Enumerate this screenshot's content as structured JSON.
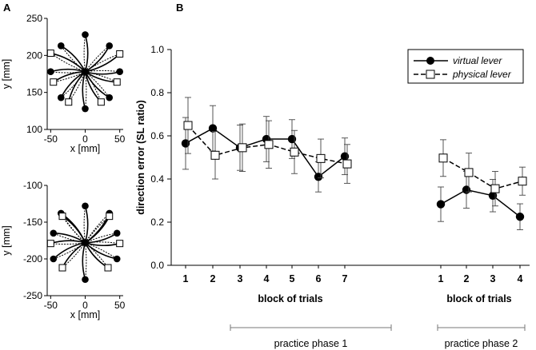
{
  "panel_labels": {
    "a": "A",
    "b": "B"
  },
  "chart_data": [
    {
      "type": "scatter",
      "panel": "A-top",
      "xlabel": "x [mm]",
      "ylabel": "y [mm]",
      "xlim": [
        -55,
        55
      ],
      "ylim": [
        100,
        250
      ],
      "xticks": [
        -50,
        0,
        50
      ],
      "yticks": [
        100,
        150,
        200,
        250
      ],
      "center": [
        0,
        178
      ],
      "virtual_targets": [
        [
          0,
          228
        ],
        [
          35,
          213
        ],
        [
          50,
          178
        ],
        [
          35,
          143
        ],
        [
          0,
          128
        ],
        [
          -35,
          143
        ],
        [
          -50,
          178
        ],
        [
          -35,
          213
        ]
      ],
      "physical_targets": [
        [
          -50,
          203
        ],
        [
          50,
          202
        ],
        [
          -46,
          164
        ],
        [
          46,
          164
        ],
        [
          -24,
          137
        ],
        [
          23,
          137
        ]
      ]
    },
    {
      "type": "scatter",
      "panel": "A-bottom",
      "xlabel": "x [mm]",
      "ylabel": "y [mm]",
      "xlim": [
        -55,
        55
      ],
      "ylim": [
        -250,
        -100
      ],
      "xticks": [
        -50,
        0,
        50
      ],
      "yticks": [
        -250,
        -200,
        -150,
        -100
      ],
      "center": [
        0,
        -178
      ],
      "virtual_targets": [
        [
          0,
          -128
        ],
        [
          35,
          -138
        ],
        [
          46,
          -165
        ],
        [
          46,
          -200
        ],
        [
          0,
          -228
        ],
        [
          -46,
          -200
        ],
        [
          -46,
          -165
        ],
        [
          -35,
          -138
        ]
      ],
      "physical_targets": [
        [
          -33,
          -142
        ],
        [
          35,
          -142
        ],
        [
          -50,
          -179
        ],
        [
          50,
          -179
        ],
        [
          -33,
          -212
        ],
        [
          33,
          -212
        ]
      ]
    },
    {
      "type": "line",
      "panel": "B",
      "ylabel": "direction error (SL ratio)",
      "ylim": [
        0.0,
        1.0
      ],
      "yticks": [
        "0.0",
        "0.2",
        "0.4",
        "0.6",
        "0.8",
        "1.0"
      ],
      "xlabel": "block of trials",
      "groups": [
        {
          "name": "practice phase 1",
          "categories": [
            "1",
            "2",
            "3",
            "4",
            "5",
            "6",
            "7"
          ]
        },
        {
          "name": "practice phase 2",
          "categories": [
            "1",
            "2",
            "3",
            "4"
          ]
        }
      ],
      "series": [
        {
          "name": "virtual lever",
          "style": "solid-filled-circle",
          "phase1": {
            "values": [
              0.565,
              0.635,
              0.545,
              0.585,
              0.585,
              0.41,
              0.505
            ],
            "errors": [
              0.12,
              0.105,
              0.105,
              0.105,
              0.09,
              0.07,
              0.085
            ]
          },
          "phase2": {
            "values": [
              0.283,
              0.35,
              0.323,
              0.225
            ],
            "errors": [
              0.08,
              0.085,
              0.075,
              0.06
            ]
          }
        },
        {
          "name": "physical lever",
          "style": "dashed-open-square",
          "phase1": {
            "values": [
              0.648,
              0.51,
              0.545,
              0.56,
              0.525,
              0.495,
              0.47
            ],
            "errors": [
              0.13,
              0.11,
              0.11,
              0.11,
              0.1,
              0.09,
              0.09
            ]
          },
          "phase2": {
            "values": [
              0.497,
              0.43,
              0.355,
              0.39
            ],
            "errors": [
              0.085,
              0.09,
              0.08,
              0.065
            ]
          }
        }
      ]
    }
  ]
}
